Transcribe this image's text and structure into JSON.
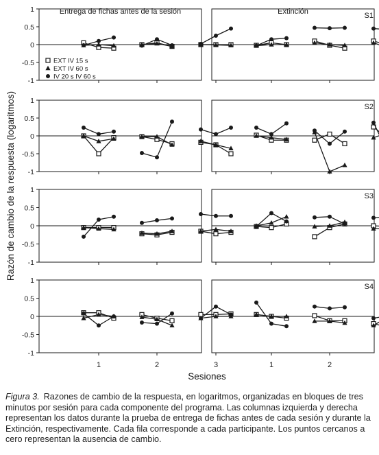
{
  "chart_data": {
    "type": "line",
    "layout": "4 rows x 2 columns of small multiples",
    "ylabel": "Razón de cambio de la respuesta (logaritmos)",
    "xlabel": "Sesiones",
    "x_ticks": [
      "1",
      "2",
      "3"
    ],
    "ylim": [
      -1,
      1
    ],
    "y_ticks": [
      "1",
      "0.5",
      "0",
      "-0.5",
      "-1"
    ],
    "column_titles": [
      "Entrega de fichas antes de la sesión",
      "Extinción"
    ],
    "row_labels": [
      "S1",
      "S2",
      "S3",
      "S4"
    ],
    "legend": {
      "location": "S1, left panel, lower-left",
      "entries": [
        {
          "key": "ext15",
          "label": "EXT IV 15 s",
          "marker": "open-square"
        },
        {
          "key": "ext60",
          "label": "EXT IV 60 s",
          "marker": "filled-triangle"
        },
        {
          "key": "iv20",
          "label": "IV 20 s IV 60 s",
          "marker": "filled-circle"
        }
      ]
    },
    "series_keys": [
      "ext15",
      "ext60",
      "iv20"
    ],
    "notes": "Each session shows three consecutive 3-minute blocks; values are log response-change ratios.",
    "panels": [
      {
        "row": "S1",
        "col": 0,
        "series": {
          "ext15": [
            [
              0.05,
              -0.08,
              -0.1
            ],
            [
              0.0,
              0.05,
              -0.05
            ],
            [
              0.0,
              0.0,
              0.0
            ]
          ],
          "ext60": [
            [
              -0.02,
              0.0,
              -0.03
            ],
            [
              0.0,
              0.03,
              -0.05
            ],
            [
              0.0,
              -0.01,
              -0.02
            ]
          ],
          "iv20": [
            [
              -0.02,
              0.1,
              0.2
            ],
            [
              -0.03,
              0.15,
              -0.02
            ],
            [
              0.02,
              0.25,
              0.45
            ]
          ]
        }
      },
      {
        "row": "S1",
        "col": 1,
        "series": {
          "ext15": [
            [
              -0.02,
              0.05,
              0.0
            ],
            [
              0.1,
              -0.02,
              -0.1
            ],
            [
              0.1,
              -0.02,
              -0.08
            ]
          ],
          "ext60": [
            [
              -0.03,
              0.0,
              0.0
            ],
            [
              0.05,
              0.0,
              -0.02
            ],
            [
              0.05,
              -0.1,
              -0.15
            ]
          ],
          "iv20": [
            [
              -0.03,
              0.15,
              0.18
            ],
            [
              0.47,
              0.46,
              0.47
            ],
            [
              0.45,
              0.42,
              0.4
            ]
          ]
        }
      },
      {
        "row": "S2",
        "col": 0,
        "series": {
          "ext15": [
            [
              0.0,
              -0.5,
              -0.05
            ],
            [
              -0.02,
              -0.1,
              -0.22
            ],
            [
              -0.18,
              -0.25,
              -0.5
            ]
          ],
          "ext60": [
            [
              0.0,
              -0.15,
              -0.08
            ],
            [
              -0.02,
              -0.02,
              -0.25
            ],
            [
              -0.15,
              -0.25,
              -0.35
            ]
          ],
          "iv20": [
            [
              0.23,
              0.05,
              0.12
            ],
            [
              -0.48,
              -0.6,
              0.4
            ],
            [
              0.18,
              0.05,
              0.23
            ]
          ]
        }
      },
      {
        "row": "S2",
        "col": 1,
        "series": {
          "ext15": [
            [
              0.02,
              -0.12,
              -0.12
            ],
            [
              -0.12,
              0.05,
              -0.22
            ],
            [
              0.25,
              -0.1,
              -0.05
            ]
          ],
          "ext60": [
            [
              0.0,
              -0.05,
              -0.1
            ],
            [
              0.1,
              -1.0,
              -0.82
            ],
            [
              -0.05,
              0.1,
              -0.05
            ]
          ],
          "iv20": [
            [
              0.23,
              0.05,
              0.35
            ],
            [
              0.15,
              -0.22,
              0.12
            ],
            [
              0.37,
              -0.5,
              0.25
            ]
          ]
        }
      },
      {
        "row": "S3",
        "col": 0,
        "series": {
          "ext15": [
            [
              -0.05,
              -0.05,
              -0.05
            ],
            [
              -0.22,
              -0.25,
              -0.18
            ],
            [
              -0.15,
              -0.22,
              -0.18
            ]
          ],
          "ext60": [
            [
              -0.05,
              -0.08,
              -0.1
            ],
            [
              -0.2,
              -0.22,
              -0.15
            ],
            [
              -0.15,
              -0.1,
              -0.15
            ]
          ],
          "iv20": [
            [
              -0.3,
              0.17,
              0.25
            ],
            [
              0.08,
              0.15,
              0.2
            ],
            [
              0.32,
              0.27,
              0.27
            ]
          ]
        }
      },
      {
        "row": "S3",
        "col": 1,
        "series": {
          "ext15": [
            [
              -0.02,
              -0.05,
              0.05
            ],
            [
              -0.3,
              -0.05,
              0.05
            ],
            [
              0.0,
              -0.02,
              -0.05
            ]
          ],
          "ext60": [
            [
              0.0,
              0.08,
              0.25
            ],
            [
              -0.02,
              0.0,
              0.1
            ],
            [
              -0.08,
              -0.08,
              -0.02
            ]
          ],
          "iv20": [
            [
              -0.02,
              0.35,
              0.12
            ],
            [
              0.23,
              0.25,
              0.05
            ],
            [
              0.22,
              0.25,
              0.38
            ]
          ]
        }
      },
      {
        "row": "S4",
        "col": 0,
        "series": {
          "ext15": [
            [
              0.1,
              0.1,
              -0.05
            ],
            [
              0.05,
              -0.05,
              -0.12
            ],
            [
              0.05,
              0.05,
              0.07
            ]
          ],
          "ext60": [
            [
              -0.05,
              0.05,
              0.0
            ],
            [
              -0.02,
              -0.08,
              -0.25
            ],
            [
              -0.05,
              0.0,
              0.0
            ]
          ],
          "iv20": [
            [
              0.08,
              -0.25,
              0.0
            ],
            [
              -0.17,
              -0.2,
              0.08
            ],
            [
              -0.05,
              0.27,
              0.05
            ]
          ]
        }
      },
      {
        "row": "S4",
        "col": 1,
        "series": {
          "ext15": [
            [
              0.05,
              0.0,
              -0.05
            ],
            [
              0.02,
              -0.12,
              -0.12
            ],
            [
              -0.2,
              -0.3,
              -0.65
            ]
          ],
          "ext60": [
            [
              0.05,
              0.0,
              0.0
            ],
            [
              -0.13,
              -0.13,
              -0.18
            ],
            [
              -0.25,
              0.0,
              -0.52
            ]
          ],
          "iv20": [
            [
              0.38,
              -0.2,
              -0.27
            ],
            [
              0.27,
              0.22,
              0.25
            ],
            [
              -0.05,
              0.02,
              0.08
            ]
          ]
        }
      }
    ]
  },
  "caption": {
    "label": "Figura 3.",
    "text": "Razones de cambio de la respuesta, en logaritmos, organizadas en bloques de tres minutos por sesión para cada componente del programa. Las columnas izquierda y derecha representan los datos durante la prueba de entrega de fichas antes de cada sesión y durante la Extinción, respectivamente. Cada fila corresponde a cada participante. Los puntos cercanos a cero representan la ausencia de cambio."
  }
}
